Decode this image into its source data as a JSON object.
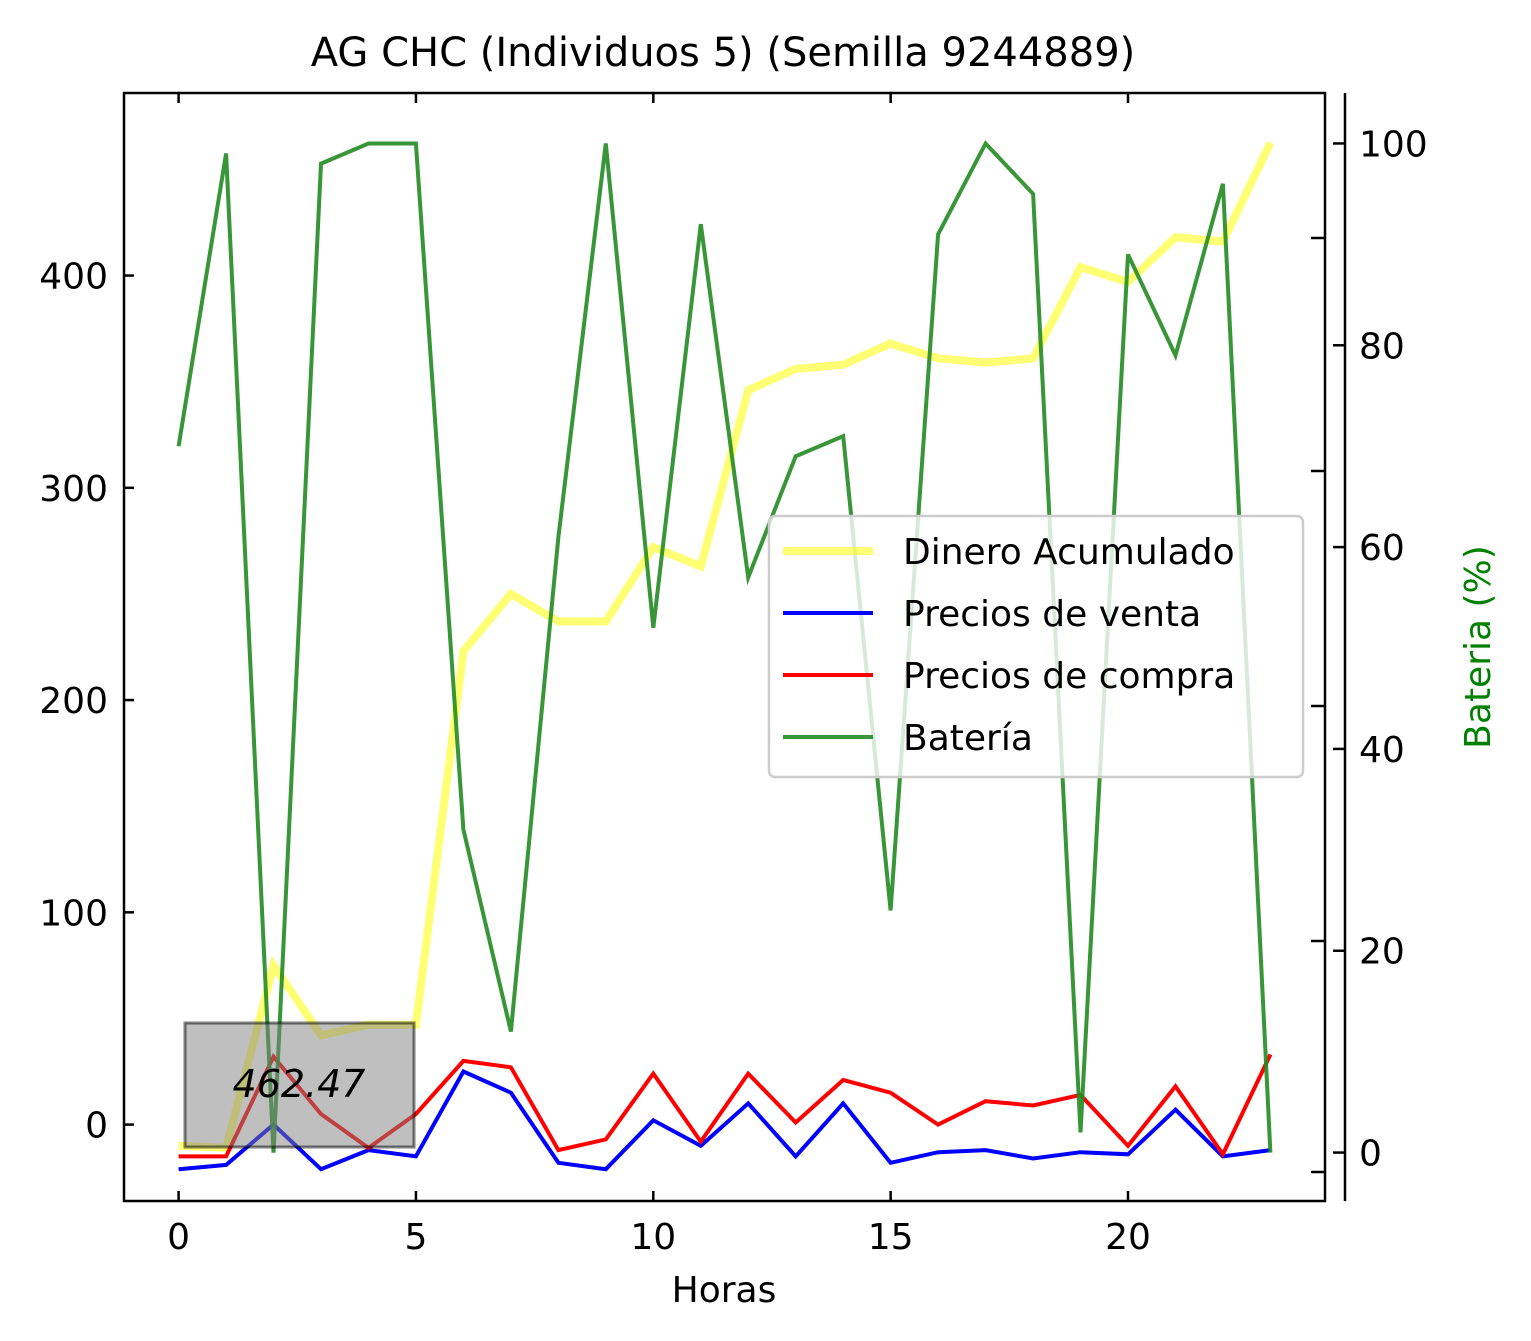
{
  "chart_data": {
    "type": "line",
    "title": "AG CHC (Individuos 5) (Semilla 9244889)",
    "xlabel": "Horas",
    "ylabel": "",
    "y2label": "Bateria (%)",
    "xlim": [
      -1.15,
      24.15
    ],
    "ylim": [
      -36,
      486
    ],
    "y2lim": [
      -4.8,
      105
    ],
    "xticks": [
      0,
      5,
      10,
      15,
      20
    ],
    "yticks": [
      0,
      100,
      200,
      300,
      400
    ],
    "y2ticks": [
      0,
      20,
      40,
      60,
      80,
      100
    ],
    "x": [
      0,
      1,
      2,
      3,
      4,
      5,
      6,
      7,
      8,
      9,
      10,
      11,
      12,
      13,
      14,
      15,
      16,
      17,
      18,
      19,
      20,
      21,
      22,
      23
    ],
    "series": [
      {
        "name": "Dinero Acumulado",
        "axis": "left",
        "color": "#ffff00",
        "opacity": 0.55,
        "width": 8,
        "values": [
          -10,
          -11,
          75,
          42,
          47,
          47,
          223,
          250,
          237,
          237,
          272,
          263,
          346,
          356,
          358,
          368,
          361,
          359,
          361,
          404,
          397,
          418,
          416,
          462.47
        ]
      },
      {
        "name": "Precios de venta",
        "axis": "left",
        "color": "#0000ff",
        "opacity": 1,
        "width": 4,
        "values": [
          -21,
          -19,
          0,
          -21,
          -12,
          -15,
          25,
          15,
          -18,
          -21,
          2,
          -10,
          10,
          -15,
          10,
          -18,
          -13,
          -12,
          -16,
          -13,
          -14,
          7,
          -15,
          -12
        ]
      },
      {
        "name": "Precios de compra",
        "axis": "left",
        "color": "#ff0000",
        "opacity": 1,
        "width": 4,
        "values": [
          -15,
          -15,
          32,
          5,
          -11,
          5,
          30,
          27,
          -12,
          -7,
          24,
          -8,
          24,
          1,
          21,
          15,
          0,
          11,
          9,
          14,
          -10,
          18,
          -14,
          33
        ]
      },
      {
        "name": "Batería",
        "axis": "right",
        "color": "#228b22",
        "opacity": 0.9,
        "width": 4,
        "values": [
          70,
          99,
          0,
          98,
          100,
          100,
          32,
          12,
          61,
          100,
          52,
          92,
          57,
          69,
          71,
          24,
          91,
          100,
          95,
          2,
          89,
          79,
          96,
          0
        ]
      }
    ],
    "legend_position": "center-right",
    "annotation": "462.47",
    "grid": false
  },
  "colors": {
    "battery_axis_label": "#008000"
  }
}
